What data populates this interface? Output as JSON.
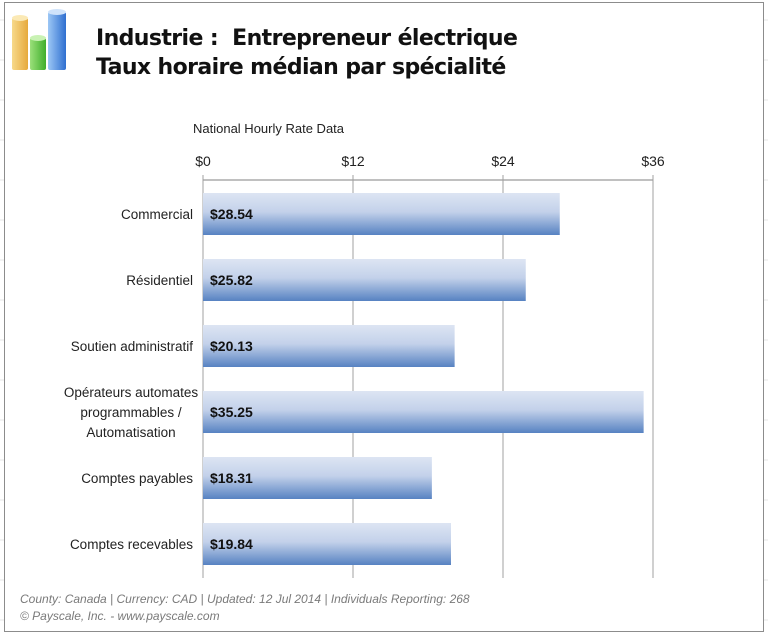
{
  "header": {
    "title_line1": "Industrie :  Entrepreneur électrique",
    "title_line2": "Taux horaire médian par spécialité",
    "logo_icon": "bar-chart-logo-icon"
  },
  "chart_data": {
    "type": "bar",
    "orientation": "horizontal",
    "title": "Industrie :  Entrepreneur électrique / Taux horaire médian par spécialité",
    "axis_title": "National Hourly Rate Data",
    "categories": [
      [
        "Commercial"
      ],
      [
        "Résidentiel"
      ],
      [
        "Soutien administratif"
      ],
      [
        "Opérateurs automates",
        "programmables /",
        "Automatisation"
      ],
      [
        "Comptes payables"
      ],
      [
        "Comptes recevables"
      ]
    ],
    "values": [
      28.54,
      25.82,
      20.13,
      35.25,
      18.31,
      19.84
    ],
    "value_labels": [
      "$28.54",
      "$25.82",
      "$20.13",
      "$35.25",
      "$18.31",
      "$19.84"
    ],
    "xlim": [
      0,
      36
    ],
    "ticks": [
      0,
      12,
      24,
      36
    ],
    "tick_labels": [
      "$0",
      "$12",
      "$24",
      "$36"
    ],
    "grid": true,
    "bar_color_top": "#dde5f3",
    "bar_color_bottom": "#5782c2"
  },
  "footer": {
    "line1": "County: Canada | Currency: CAD | Updated: 12 Jul 2014  | Individuals Reporting: 268",
    "line2": "© Payscale, Inc. - www.payscale.com"
  }
}
